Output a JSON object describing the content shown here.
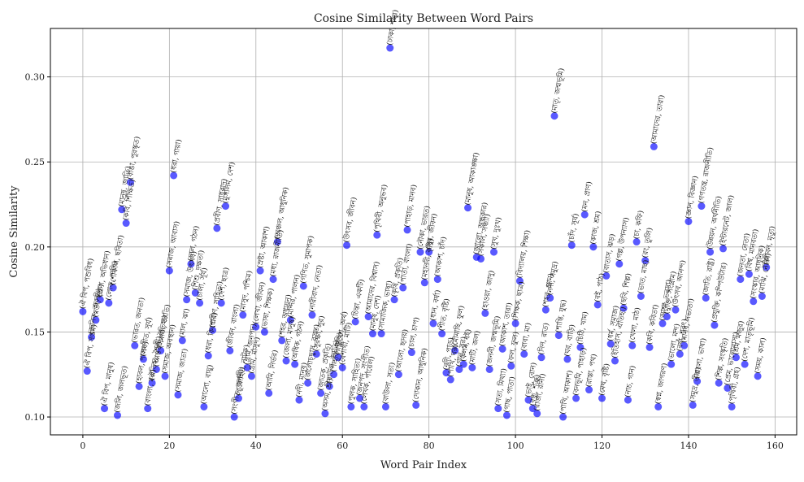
{
  "chart_data": {
    "type": "scatter",
    "title": "Cosine Similarity Between Word Pairs",
    "xlabel": "Word Pair Index",
    "ylabel": "Cosine Similarity",
    "xlim": [
      -7.5,
      165
    ],
    "ylim": [
      0.0895,
      0.3285
    ],
    "xticks": [
      0,
      20,
      40,
      60,
      80,
      100,
      120,
      140,
      160
    ],
    "yticks": [
      0.1,
      0.15,
      0.2,
      0.25,
      0.3
    ],
    "grid": true,
    "legend": "none",
    "marker_color": "#0000ff",
    "marker_alpha": 0.65,
    "x": [
      0,
      1,
      2,
      3,
      4,
      5,
      6,
      7,
      8,
      9,
      10,
      11,
      12,
      13,
      14,
      15,
      16,
      17,
      18,
      19,
      20,
      21,
      22,
      23,
      24,
      25,
      26,
      27,
      28,
      29,
      30,
      31,
      32,
      33,
      34,
      35,
      36,
      37,
      38,
      39,
      40,
      41,
      42,
      43,
      44,
      45,
      46,
      47,
      48,
      49,
      50,
      51,
      52,
      53,
      54,
      55,
      56,
      57,
      58,
      59,
      60,
      61,
      62,
      63,
      64,
      65,
      66,
      67,
      68,
      69,
      70,
      71,
      72,
      73,
      74,
      75,
      76,
      77,
      78,
      79,
      80,
      81,
      82,
      83,
      84,
      85,
      86,
      87,
      88,
      89,
      90,
      91,
      92,
      93,
      94,
      95,
      96,
      97,
      98,
      99,
      100,
      101,
      102,
      103,
      104,
      105,
      106,
      107,
      108,
      109,
      110,
      111,
      112,
      113,
      114,
      115,
      116,
      117,
      118,
      119,
      120,
      121,
      122,
      123,
      124,
      125,
      126,
      127,
      128,
      129,
      130,
      131,
      132,
      133,
      134,
      135,
      136,
      137,
      138,
      139,
      140,
      141,
      142,
      143,
      144,
      145,
      146,
      147,
      148,
      149,
      150,
      151,
      152,
      153,
      154,
      155,
      156,
      157,
      158
    ],
    "y": [
      0.162,
      0.127,
      0.147,
      0.157,
      0.169,
      0.105,
      0.167,
      0.176,
      0.101,
      0.222,
      0.214,
      0.238,
      0.142,
      0.118,
      0.134,
      0.105,
      0.12,
      0.128,
      0.139,
      0.124,
      0.186,
      0.242,
      0.113,
      0.145,
      0.169,
      0.19,
      0.173,
      0.167,
      0.106,
      0.136,
      0.151,
      0.211,
      0.167,
      0.224,
      0.139,
      0.1,
      0.111,
      0.16,
      0.129,
      0.124,
      0.153,
      0.186,
      0.15,
      0.114,
      0.181,
      0.203,
      0.145,
      0.133,
      0.157,
      0.131,
      0.11,
      0.177,
      0.12,
      0.16,
      0.137,
      0.114,
      0.102,
      0.118,
      0.125,
      0.135,
      0.129,
      0.201,
      0.106,
      0.156,
      0.111,
      0.106,
      0.159,
      0.149,
      0.207,
      0.149,
      0.106,
      0.317,
      0.169,
      0.125,
      0.176,
      0.21,
      0.138,
      0.107,
      0.197,
      0.179,
      0.197,
      0.155,
      0.181,
      0.149,
      0.126,
      0.122,
      0.139,
      0.128,
      0.131,
      0.223,
      0.129,
      0.194,
      0.193,
      0.161,
      0.128,
      0.197,
      0.105,
      0.14,
      0.101,
      0.13,
      0.155,
      0.18,
      0.137,
      0.11,
      0.105,
      0.102,
      0.135,
      0.163,
      0.17,
      0.277,
      0.148,
      0.1,
      0.134,
      0.201,
      0.111,
      0.141,
      0.219,
      0.116,
      0.2,
      0.166,
      0.111,
      0.183,
      0.143,
      0.133,
      0.19,
      0.164,
      0.11,
      0.142,
      0.203,
      0.171,
      0.192,
      0.141,
      0.259,
      0.106,
      0.155,
      0.159,
      0.131,
      0.163,
      0.137,
      0.142,
      0.215,
      0.107,
      0.121,
      0.224,
      0.17,
      0.197,
      0.154,
      0.12,
      0.199,
      0.117,
      0.106,
      0.135,
      0.181,
      0.131,
      0.184,
      0.168,
      0.124,
      0.171,
      0.188
    ],
    "labels": [
      "(ঐ বিপ, পশুবিধ)",
      "(ঐ বিপ, সপ্তম)",
      "(জনিক, অরুচি)",
      "(স্বর্তা, হত্য)",
      "(প্রণা, অভিধান)",
      "(ঐ বিপ, মানুষ)",
      "(লোক, পাখি)",
      "(শোকাল, ছবিতা)",
      "(জলি, জলভূত)",
      "(মানুষ, জাতি)",
      "(কবি, শিক্ষিত)",
      "(বাঙা, পুরস্কৃত)",
      "(ভারত, জনতা)",
      "(হাবল, পালন)",
      "(সংগীত, সূর্য)",
      "(বাংলা, মরু)",
      "(ঐতিহ্য, শৈলী)",
      "(আন্তর্জা, ঐতিহ্য)",
      "(সমাজ, জাতি)",
      "(সমাজ, অবস্থান)",
      "(সমাজ, আবাস)",
      "(ধরা, গায়া)",
      "(সমাজ, জাতা)",
      "(মাল, ঝা)",
      "(সমাজ, উৎসব)",
      "(সাল, গঠন)",
      "(শিশু, দক্ষতা)",
      "(চালা, সূর্য)",
      "(আলো, বায়ু)",
      "(ধরা, কিশোর)",
      "(প্রবীণ, সাহিত্য)",
      "(প্রবীণ, সাধুবাদ)",
      "(দেশ, ছাত্র)",
      "(মুসলিম, দেশ)",
      "(জীবন, বাংলা)",
      "(সংগীত, জননী)",
      "(পুরোহিত, নাটক)",
      "(মাসুদ, পশ্চিম)",
      "(গ্রাম, জনপদ)",
      "(গ্রাম, মাসুদ)",
      "(লেখা, জীবন)",
      "(স্রষ্টা, আকাশ)",
      "(ভাষা, শিক্ষক)",
      "(আমি, নির্ভর)",
      "(মধ্য, রাজনীতি)",
      "(অঞ্চল, আধুনিক)",
      "(শহর, অধ্যয়ন)",
      "(জেলা, মানুষ)",
      "(মন্দির, পালন)",
      "(অধিক, গঠন)",
      "(নদী, মানুষ)",
      "(গণিত, সুমাপক)",
      "(জলোচ্ছ্বাস, বসন্ত)",
      "(নারীবাদ, নেতা)",
      "(সুরক্ষা, সুর)",
      "(জাতক, প্রকৃতি)",
      "(অসম, শ্রী)",
      "(বাউল, জাতি)",
      "(পাহাড়, কৃষি)",
      "(পরিবেশ, অর্থ)",
      "(বৈশাখী, মাটি)",
      "(উৎসব, জীবন)",
      "(পুলক, সাহিত্য)",
      "(চিন্তা, একটি)",
      "(জনপদ, সংগীত)",
      "(লেখক, পায়েল)",
      "(আমাদের, বিশ্বাস)",
      "(মানুষ, দেশ)",
      "(পৃথিবী, অনুভব)",
      "(সামাজিক, ভাষা)",
      "(বাউলা, সত্য)",
      "(ঢাকা, শহর)",
      "(কৃষি, প্রকৃতি)",
      "(আলো, হৃদয়)",
      "(পাতা, বাংলা)",
      "(পাহাড়, মানব)",
      "(চাল, চাপ)",
      "(দোকান, আধুনিক)",
      "(নৌকা, ভারত)",
      "(মহানদী, কৃষি)",
      "(সুর, জীবন)",
      "(ধান, বর্ষা)",
      "(আকাশ, চাঁদ)",
      "(শীত, বৃষ্টি)",
      "(নদী, পাড়)",
      "(পাখি, ঘর)",
      "(মৌমাছি, ফুল)",
      "(গান, সুর)",
      "(কলম, বই)",
      "(মানুষ, আকাঙ্ক্ষা)",
      "(মাটি, জল)",
      "(আলো, অন্ধকার)",
      "(সকাল, সন্ধ্যা)",
      "(হাওয়া, জাদু)",
      "(জননী, জন্মভূমি)",
      "(সুখ, দুঃখ)",
      "(সত্য, মিথ্যা)",
      "(আকাশ, তারা)",
      "(গাছ, পাতা)",
      "(ফল, ফুল)",
      "(শিক্ষক, ছাত্র)",
      "(বিদ্যালয়, শিক্ষা)",
      "(বাবা, মা)",
      "(ভাই, বোন)",
      "(বন্ধু, শত্রু)",
      "(রাজা, রানী)",
      "(দিন, রাত)",
      "(শহর, গ্রাম)",
      "(নদী, সমুদ্র)",
      "(মাতৃ, জন্মভূমি)",
      "(শান্তি, যুদ্ধ)",
      "(পাখি, আকাশ)",
      "(ঘর, বাড়ি)",
      "(চাঁদ, সূর্য)",
      "(বনভূমি, পাহাড়)",
      "(চিঠি, খাম)",
      "(মন, প্রাণ)",
      "(রাস্তা, পথ)",
      "(কাজ, শ্রম)",
      "(বই, পাঠ)",
      "(মেঘ, বৃষ্টি)",
      "(বাতাস, ঝড়)",
      "(ধর্ম, সমাজ)",
      "(ইতিহাস, ঐতিহ্য)",
      "(গল্প, উপন্যাস)",
      "(ছবি, শিল্প)",
      "(নাচ, গান)",
      "(খেলা, মাঠ)",
      "(চা, কফি)",
      "(ভাত, মাছ)",
      "(রং, তুলি)",
      "(কবি, কবিতা)",
      "(আমাদের, তারা)",
      "(স্বপ্ন, জাগরণ)",
      "(আশা, ভরসা)",
      "(মুক্তি, সংগ্রাম)",
      "(ভালো, মন্দ)",
      "(উৎসব, আনন্দ)",
      "(বর্ষা, শরৎ)",
      "(মানব, সভ্যতা)",
      "(জ্ঞান, বিজ্ঞান)",
      "(সমুদ্র, তীর)",
      "(বাংলা, ভাষা)",
      "(গণতন্ত্র, রাজনীতি)",
      "(জাতি, রাষ্ট্র)",
      "(উন্নয়ন, অর্থনীতি)",
      "(প্রযুক্তি, কম্পিউটার)",
      "(শিল্প, সংস্কৃতি)",
      "(ইন্টারনেট, জাল)",
      "(প্রেম, ভালোবাসা)",
      "(পৃথিবী, গ্রহ)",
      "(শ্রম, মজুর)",
      "(জনতা, নেতা)",
      "(দেশ, মাতৃভূমি)",
      "(বিশ্ব, মানবতা)",
      "(সংস্কার, আধুনিক)",
      "(সময়, কাল)",
      "(মাঝি, নৌকা)",
      "(জীবন, মৃত্যু)"
    ]
  }
}
